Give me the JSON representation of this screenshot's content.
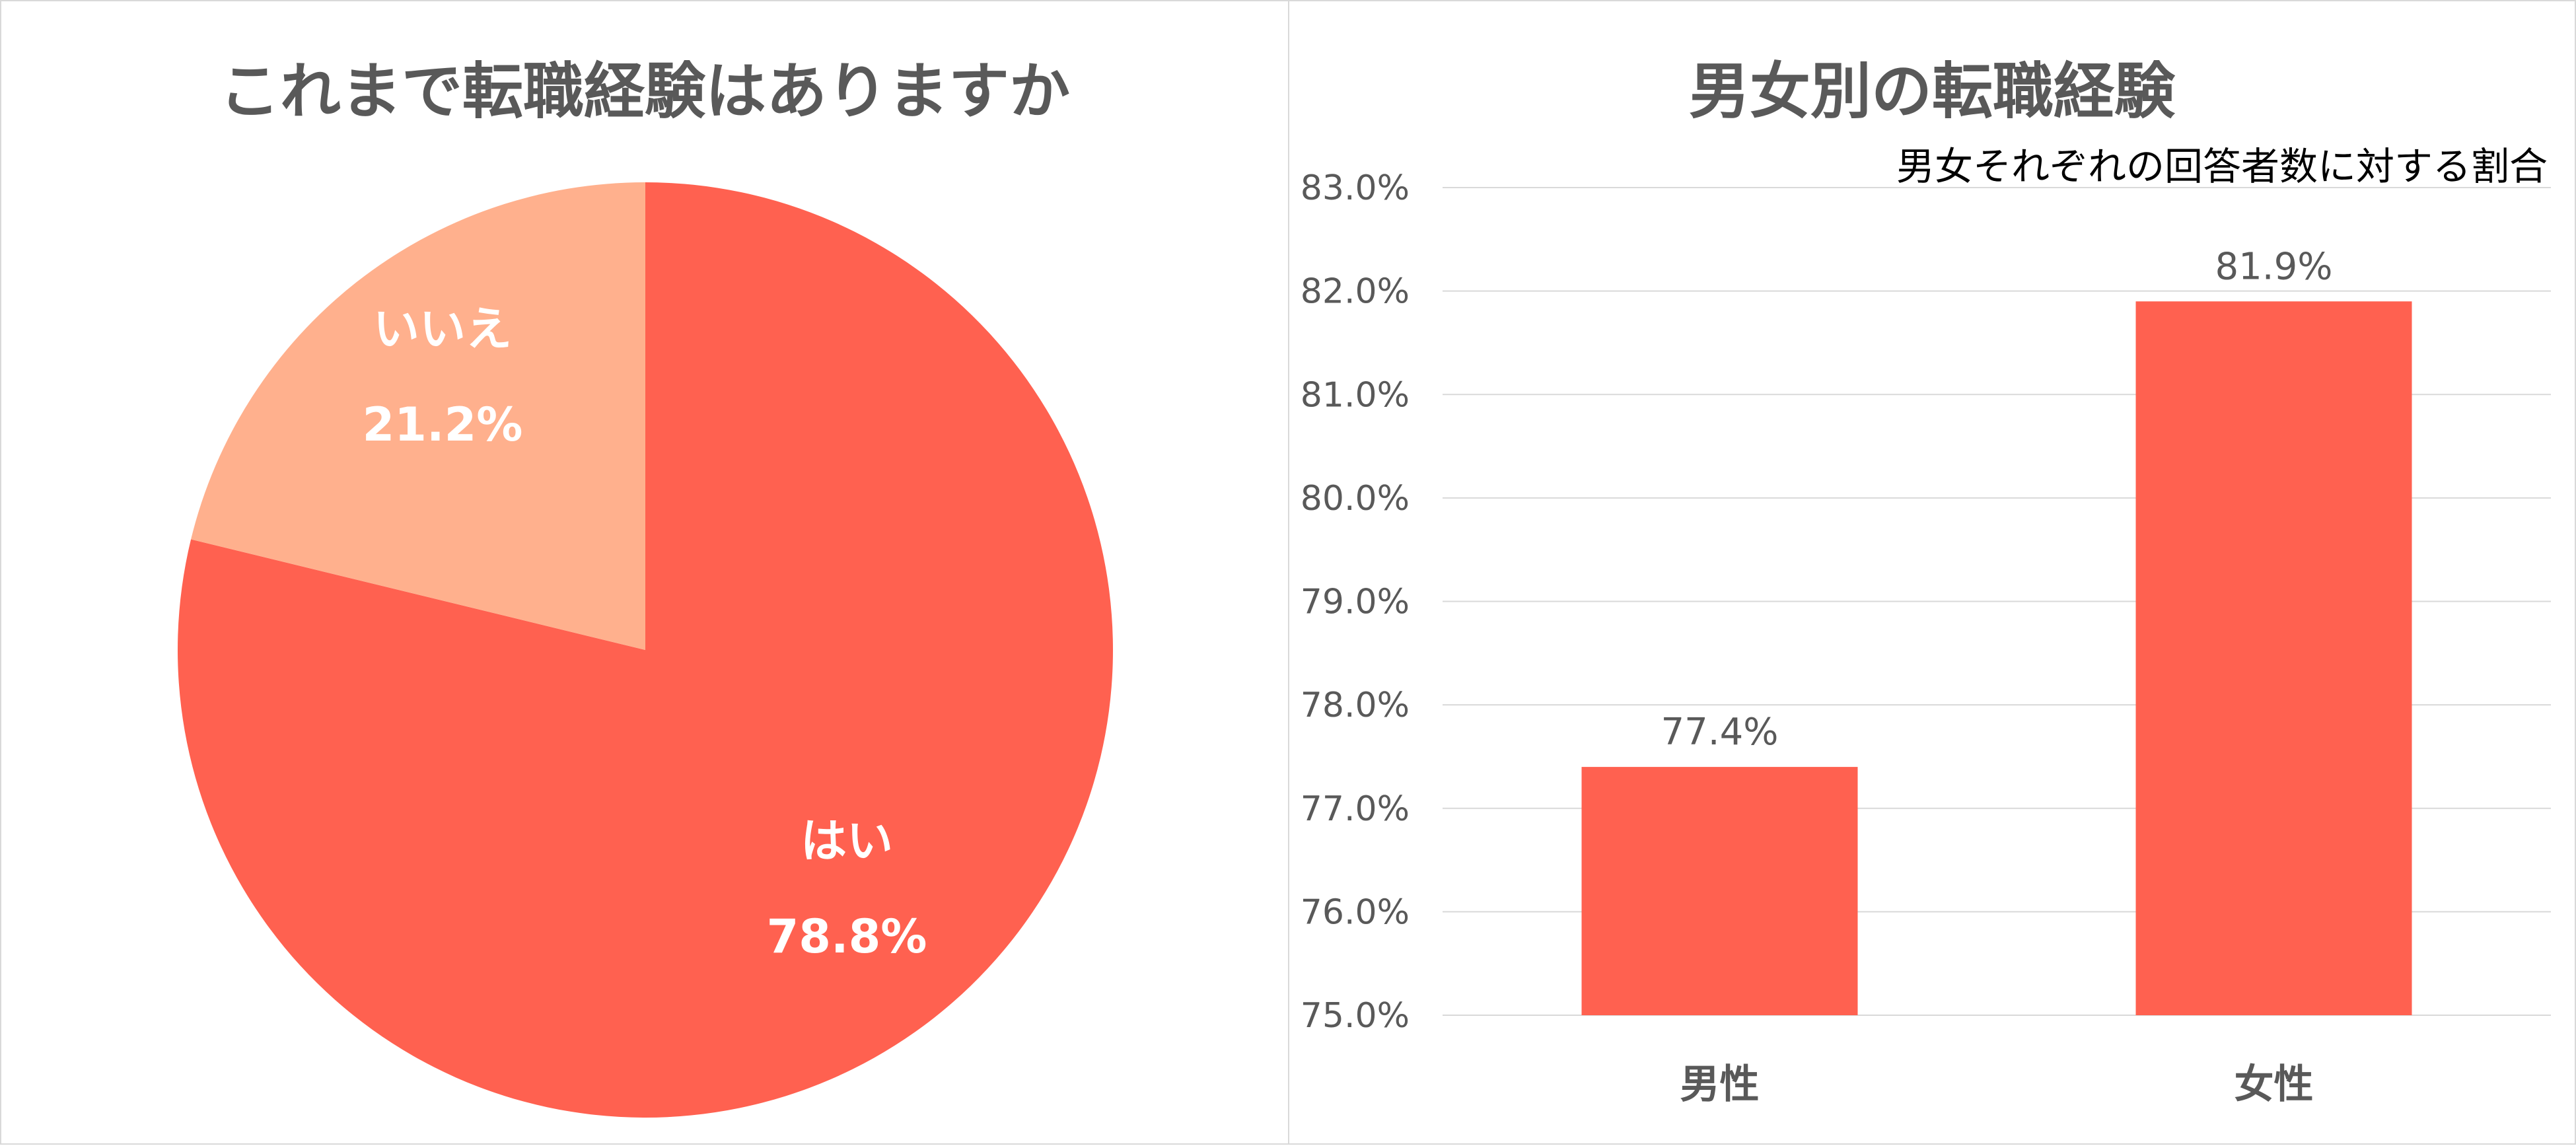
{
  "chart_data": [
    {
      "type": "pie",
      "title": "これまで転職経験はありますか",
      "slices": [
        {
          "label": "はい",
          "value": 78.8,
          "value_label": "78.8%",
          "color": "#FF6150"
        },
        {
          "label": "いいえ",
          "value": 21.2,
          "value_label": "21.2%",
          "color": "#FFB08D"
        }
      ]
    },
    {
      "type": "bar",
      "title": "男女別の転職経験",
      "subtitle": "男女それぞれの回答者数に対する割合",
      "categories": [
        "男性",
        "女性"
      ],
      "values": [
        77.4,
        81.9
      ],
      "value_labels": [
        "77.4%",
        "81.9%"
      ],
      "ylim": [
        75.0,
        83.0
      ],
      "yticks": [
        "75.0%",
        "76.0%",
        "77.0%",
        "78.0%",
        "79.0%",
        "80.0%",
        "81.0%",
        "82.0%",
        "83.0%"
      ],
      "grid": true,
      "bar_color": "#FF6150"
    }
  ]
}
